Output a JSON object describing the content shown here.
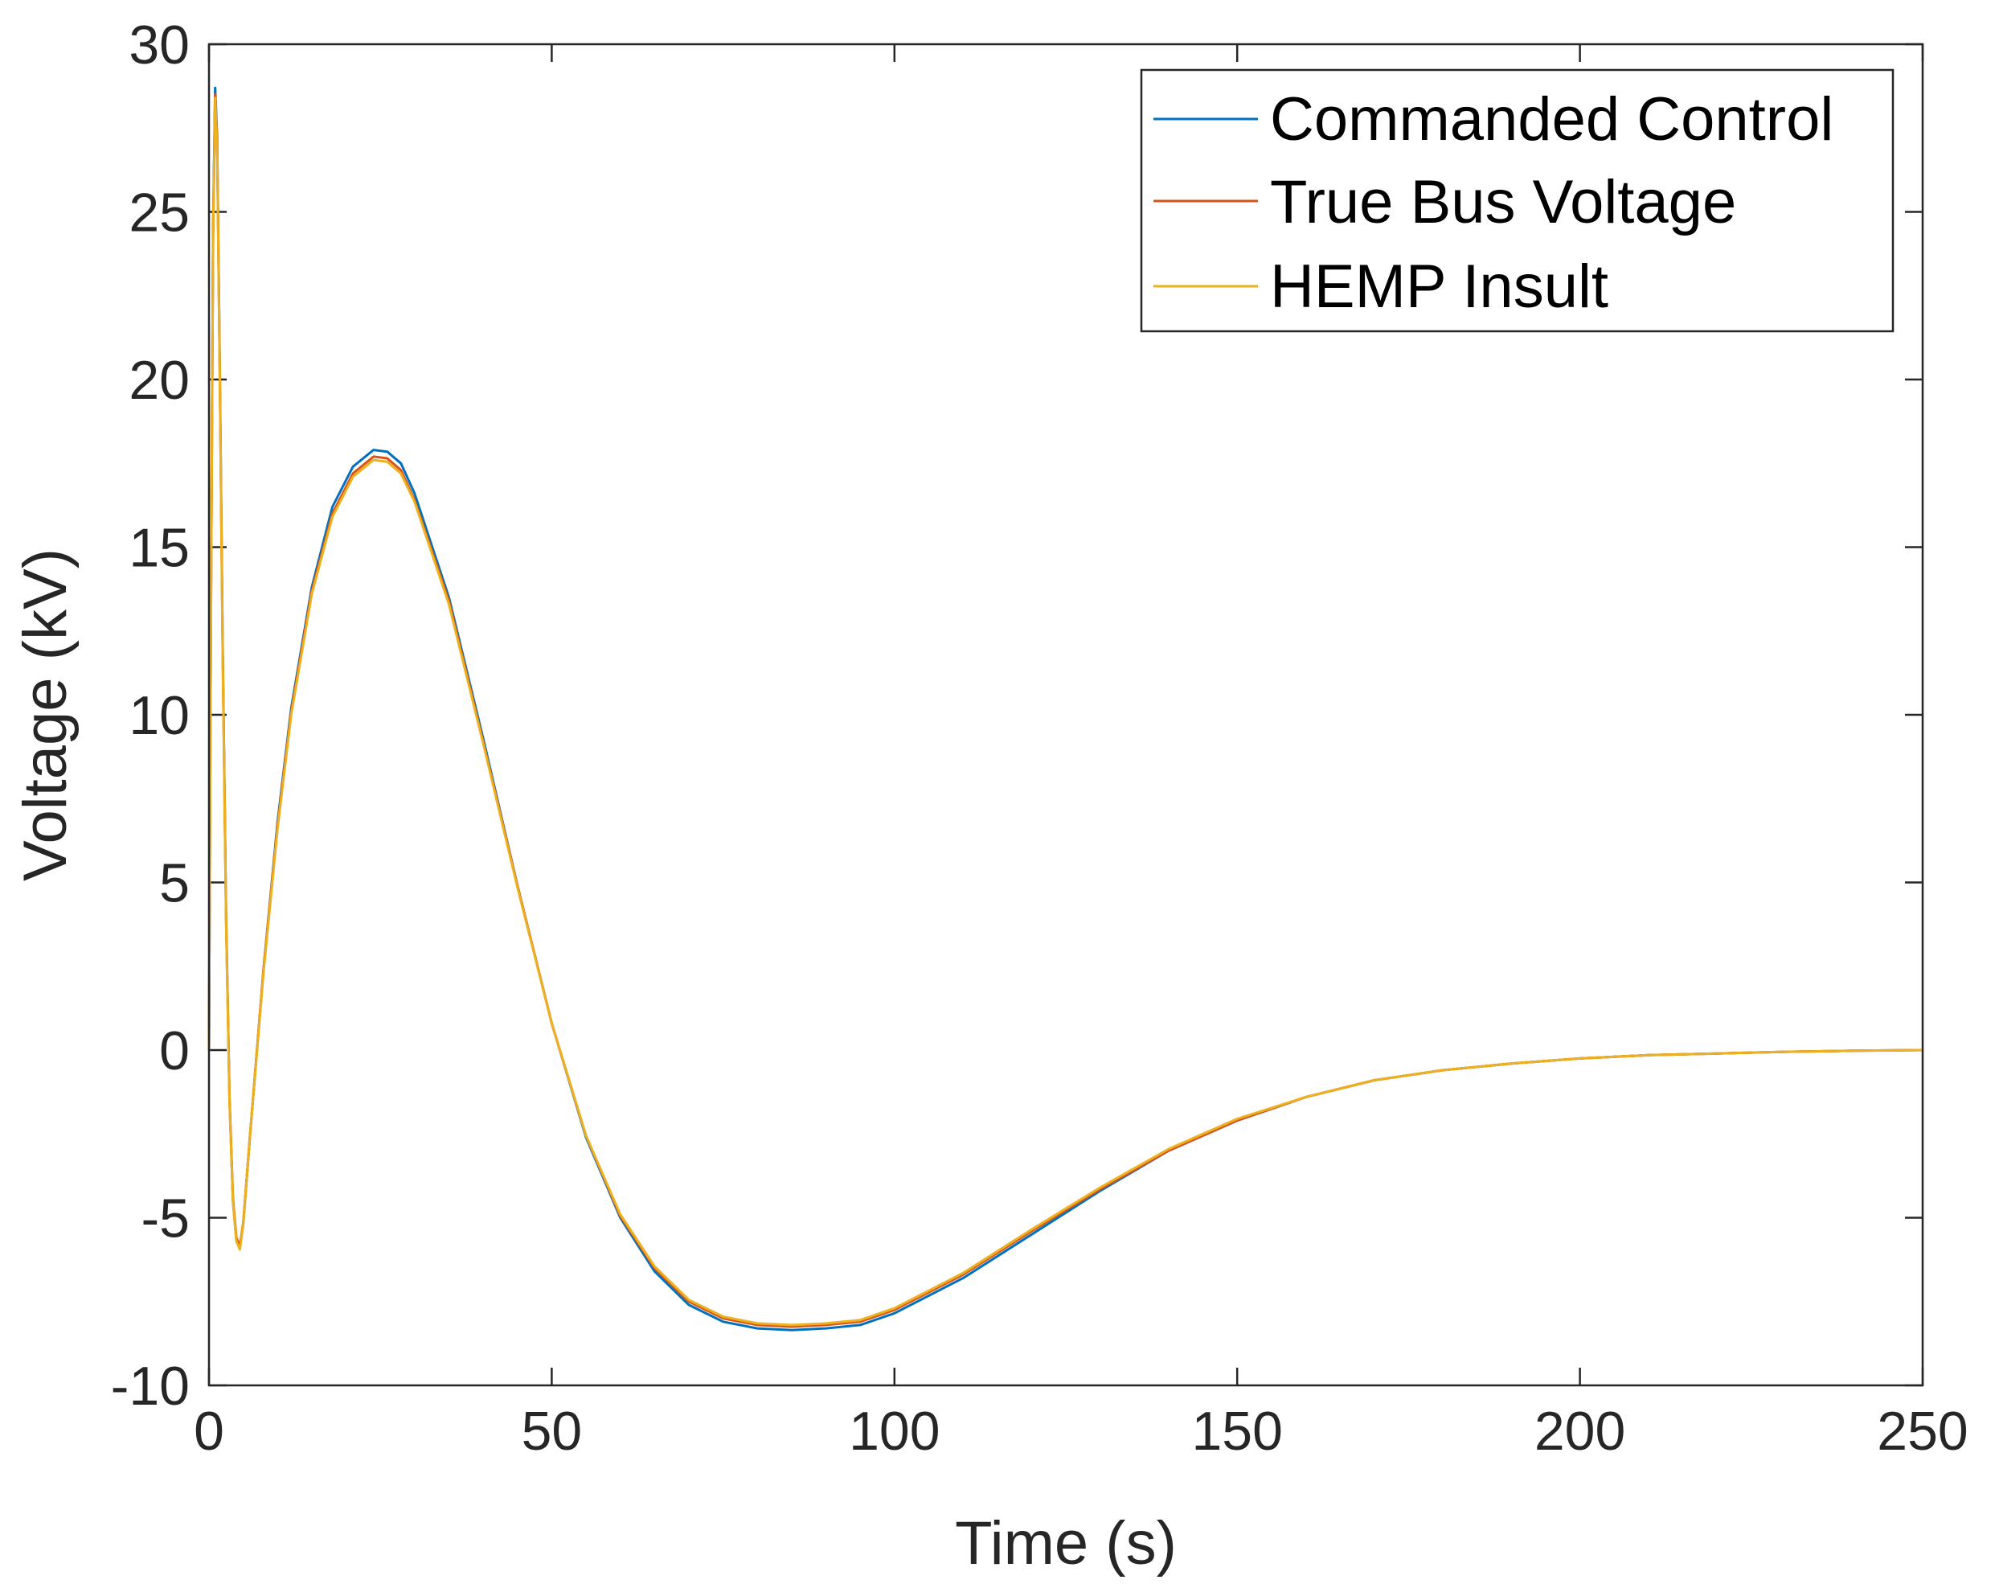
{
  "chart_data": {
    "type": "line",
    "xlabel": "Time (s)",
    "ylabel": "Voltage (kV)",
    "xlim": [
      0,
      250
    ],
    "ylim": [
      -10,
      30
    ],
    "xticks": [
      0,
      50,
      100,
      150,
      200,
      250
    ],
    "yticks": [
      -10,
      -5,
      0,
      5,
      10,
      15,
      20,
      25,
      30
    ],
    "xtick_labels": [
      "0",
      "50",
      "100",
      "150",
      "200",
      "250"
    ],
    "ytick_labels": [
      "-10",
      "-5",
      "0",
      "5",
      "10",
      "15",
      "20",
      "25",
      "30"
    ],
    "grid": false,
    "legend_position": "top-right",
    "series": [
      {
        "name": "Commanded Control",
        "color": "#0072BD",
        "points": [
          [
            0,
            0
          ],
          [
            0.3,
            14
          ],
          [
            0.6,
            24.5
          ],
          [
            0.9,
            28.7
          ],
          [
            1.2,
            27.2
          ],
          [
            1.6,
            20
          ],
          [
            2,
            12
          ],
          [
            2.5,
            4
          ],
          [
            3,
            -1.5
          ],
          [
            3.5,
            -4.5
          ],
          [
            4,
            -5.7
          ],
          [
            4.5,
            -5.9
          ],
          [
            5,
            -5.2
          ],
          [
            6,
            -2.5
          ],
          [
            8,
            2.5
          ],
          [
            10,
            6.8
          ],
          [
            12,
            10.2
          ],
          [
            15,
            13.8
          ],
          [
            18,
            16.2
          ],
          [
            21,
            17.4
          ],
          [
            24,
            17.9
          ],
          [
            26,
            17.85
          ],
          [
            28,
            17.5
          ],
          [
            30,
            16.6
          ],
          [
            35,
            13.5
          ],
          [
            40,
            9.3
          ],
          [
            45,
            4.9
          ],
          [
            50,
            0.8
          ],
          [
            55,
            -2.6
          ],
          [
            60,
            -5.0
          ],
          [
            65,
            -6.6
          ],
          [
            70,
            -7.6
          ],
          [
            75,
            -8.1
          ],
          [
            80,
            -8.3
          ],
          [
            85,
            -8.35
          ],
          [
            90,
            -8.3
          ],
          [
            95,
            -8.2
          ],
          [
            100,
            -7.85
          ],
          [
            110,
            -6.8
          ],
          [
            120,
            -5.5
          ],
          [
            130,
            -4.2
          ],
          [
            140,
            -3.0
          ],
          [
            150,
            -2.1
          ],
          [
            160,
            -1.4
          ],
          [
            170,
            -0.9
          ],
          [
            180,
            -0.6
          ],
          [
            190,
            -0.4
          ],
          [
            200,
            -0.25
          ],
          [
            210,
            -0.15
          ],
          [
            220,
            -0.1
          ],
          [
            230,
            -0.05
          ],
          [
            240,
            -0.02
          ],
          [
            250,
            0
          ]
        ]
      },
      {
        "name": "True Bus Voltage",
        "color": "#D95319",
        "points": [
          [
            0,
            0
          ],
          [
            0.3,
            13.8
          ],
          [
            0.6,
            24.3
          ],
          [
            0.9,
            28.5
          ],
          [
            1.2,
            27
          ],
          [
            1.6,
            19.8
          ],
          [
            2,
            11.8
          ],
          [
            2.5,
            3.9
          ],
          [
            3,
            -1.5
          ],
          [
            3.5,
            -4.4
          ],
          [
            4,
            -5.6
          ],
          [
            4.5,
            -5.85
          ],
          [
            5,
            -5.15
          ],
          [
            6,
            -2.5
          ],
          [
            8,
            2.5
          ],
          [
            10,
            6.7
          ],
          [
            12,
            10.1
          ],
          [
            15,
            13.7
          ],
          [
            18,
            16.0
          ],
          [
            21,
            17.2
          ],
          [
            24,
            17.7
          ],
          [
            26,
            17.65
          ],
          [
            28,
            17.3
          ],
          [
            30,
            16.4
          ],
          [
            35,
            13.4
          ],
          [
            40,
            9.2
          ],
          [
            45,
            4.9
          ],
          [
            50,
            0.8
          ],
          [
            55,
            -2.55
          ],
          [
            60,
            -4.95
          ],
          [
            65,
            -6.5
          ],
          [
            70,
            -7.5
          ],
          [
            75,
            -8.0
          ],
          [
            80,
            -8.2
          ],
          [
            85,
            -8.25
          ],
          [
            90,
            -8.2
          ],
          [
            95,
            -8.1
          ],
          [
            100,
            -7.75
          ],
          [
            110,
            -6.7
          ],
          [
            120,
            -5.4
          ],
          [
            130,
            -4.15
          ],
          [
            140,
            -3.0
          ],
          [
            150,
            -2.1
          ],
          [
            160,
            -1.4
          ],
          [
            170,
            -0.9
          ],
          [
            180,
            -0.6
          ],
          [
            190,
            -0.4
          ],
          [
            200,
            -0.25
          ],
          [
            210,
            -0.15
          ],
          [
            220,
            -0.1
          ],
          [
            230,
            -0.05
          ],
          [
            240,
            -0.02
          ],
          [
            250,
            0
          ]
        ]
      },
      {
        "name": "HEMP Insult",
        "color": "#EDB120",
        "points": [
          [
            0,
            0
          ],
          [
            0.3,
            13.7
          ],
          [
            0.6,
            24.2
          ],
          [
            0.9,
            28.4
          ],
          [
            1.2,
            26.9
          ],
          [
            1.6,
            19.7
          ],
          [
            2,
            11.7
          ],
          [
            2.5,
            3.8
          ],
          [
            3,
            -1.6
          ],
          [
            3.5,
            -4.5
          ],
          [
            4,
            -5.7
          ],
          [
            4.5,
            -5.95
          ],
          [
            5,
            -5.2
          ],
          [
            6,
            -2.5
          ],
          [
            8,
            2.4
          ],
          [
            10,
            6.6
          ],
          [
            12,
            10.0
          ],
          [
            15,
            13.6
          ],
          [
            18,
            15.9
          ],
          [
            21,
            17.1
          ],
          [
            24,
            17.6
          ],
          [
            26,
            17.55
          ],
          [
            28,
            17.2
          ],
          [
            30,
            16.35
          ],
          [
            35,
            13.3
          ],
          [
            40,
            9.15
          ],
          [
            45,
            4.85
          ],
          [
            50,
            0.8
          ],
          [
            55,
            -2.55
          ],
          [
            60,
            -4.9
          ],
          [
            65,
            -6.45
          ],
          [
            70,
            -7.45
          ],
          [
            75,
            -7.95
          ],
          [
            80,
            -8.15
          ],
          [
            85,
            -8.2
          ],
          [
            90,
            -8.15
          ],
          [
            95,
            -8.05
          ],
          [
            100,
            -7.7
          ],
          [
            110,
            -6.65
          ],
          [
            120,
            -5.35
          ],
          [
            130,
            -4.1
          ],
          [
            140,
            -2.95
          ],
          [
            150,
            -2.05
          ],
          [
            160,
            -1.4
          ],
          [
            170,
            -0.9
          ],
          [
            180,
            -0.6
          ],
          [
            190,
            -0.4
          ],
          [
            200,
            -0.25
          ],
          [
            210,
            -0.15
          ],
          [
            220,
            -0.1
          ],
          [
            230,
            -0.05
          ],
          [
            240,
            -0.02
          ],
          [
            250,
            0
          ]
        ]
      }
    ]
  }
}
